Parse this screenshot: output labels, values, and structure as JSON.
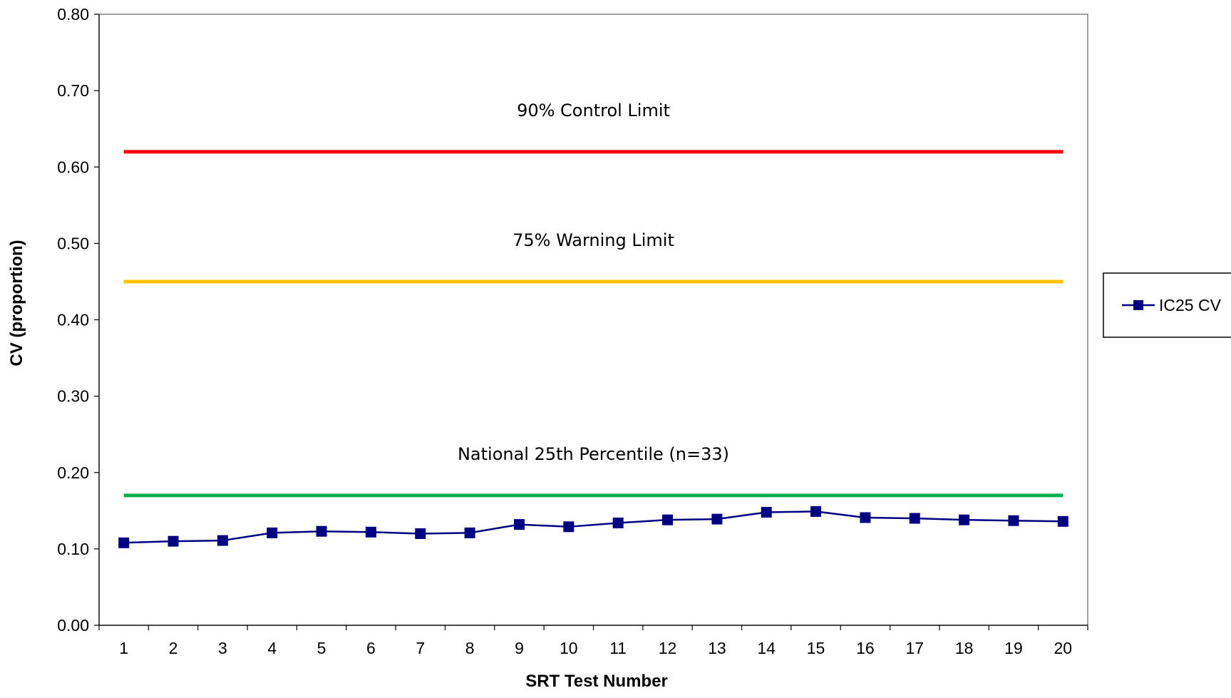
{
  "chart_data": {
    "type": "line",
    "title": "",
    "xlabel": "SRT Test Number",
    "ylabel": "CV (proportion)",
    "ylim": [
      0,
      0.8
    ],
    "y_ticks": [
      "0.00",
      "0.10",
      "0.20",
      "0.30",
      "0.40",
      "0.50",
      "0.60",
      "0.70",
      "0.80"
    ],
    "categories": [
      "1",
      "2",
      "3",
      "4",
      "5",
      "6",
      "7",
      "8",
      "9",
      "10",
      "11",
      "12",
      "13",
      "14",
      "15",
      "16",
      "17",
      "18",
      "19",
      "20"
    ],
    "grid": false,
    "legend_position": "right",
    "series": [
      {
        "name": "IC25 CV",
        "color": "#000080",
        "marker": "square",
        "values": [
          0.108,
          0.11,
          0.111,
          0.121,
          0.123,
          0.122,
          0.12,
          0.121,
          0.132,
          0.129,
          0.134,
          0.138,
          0.139,
          0.148,
          0.149,
          0.141,
          0.14,
          0.138,
          0.137,
          0.136
        ]
      }
    ],
    "reference_lines": [
      {
        "label": "90% Control Limit",
        "value": 0.62,
        "color": "#ff0000"
      },
      {
        "label": "75% Warning Limit",
        "value": 0.45,
        "color": "#ffc000"
      },
      {
        "label": "National 25th Percentile (n=33)",
        "value": 0.17,
        "color": "#00b050"
      }
    ]
  }
}
